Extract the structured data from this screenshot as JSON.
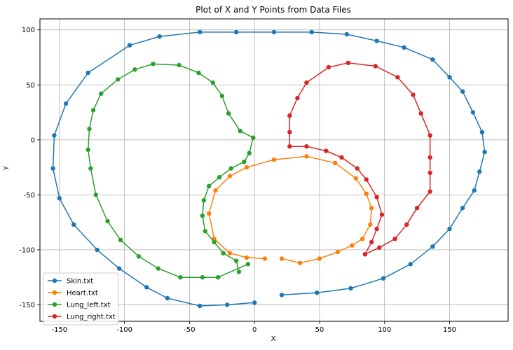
{
  "chart_data": {
    "type": "line",
    "title": "Plot of X and Y Points from Data Files",
    "xlabel": "X",
    "ylabel": "Y",
    "xlim": [
      -165,
      195
    ],
    "ylim": [
      -165,
      110
    ],
    "xticks": [
      -150,
      -100,
      -50,
      0,
      50,
      100,
      150
    ],
    "yticks": [
      -150,
      -100,
      -50,
      0,
      50,
      100
    ],
    "grid": true,
    "legend_position": "lower-left",
    "series": [
      {
        "name": "Skin.txt",
        "color": "#1f77b4",
        "points": [
          [
            0,
            -148
          ],
          [
            -21,
            -150
          ],
          [
            -42,
            -151
          ],
          [
            -67,
            -144
          ],
          [
            -83,
            -134
          ],
          [
            -104,
            -117
          ],
          [
            -121,
            -100
          ],
          [
            -139,
            -77
          ],
          [
            -150,
            -53
          ],
          [
            -155,
            -26
          ],
          [
            -154,
            4
          ],
          [
            -145,
            33
          ],
          [
            -128,
            61
          ],
          [
            -96,
            86
          ],
          [
            -73,
            94
          ],
          [
            -42,
            98
          ],
          [
            -14,
            98
          ],
          [
            15,
            98
          ],
          [
            44,
            98
          ],
          [
            71,
            96
          ],
          [
            94,
            90
          ],
          [
            115,
            84
          ],
          [
            137,
            73
          ],
          [
            150,
            57
          ],
          [
            160,
            44
          ],
          [
            168,
            25
          ],
          [
            175,
            7
          ],
          [
            177,
            -11
          ],
          [
            173,
            -29
          ],
          [
            169,
            -46
          ],
          [
            160,
            -62
          ],
          [
            150,
            -81
          ],
          [
            137,
            -97
          ],
          [
            120,
            -113
          ],
          [
            99,
            -126
          ],
          [
            74,
            -135
          ],
          [
            48,
            -139
          ],
          [
            21,
            -141
          ]
        ]
      },
      {
        "name": "Heart.txt",
        "color": "#ff7f0e",
        "points": [
          [
            8,
            -108
          ],
          [
            -6,
            -107
          ],
          [
            -19,
            -103
          ],
          [
            -31,
            -90
          ],
          [
            -35,
            -67
          ],
          [
            -30,
            -46
          ],
          [
            -19,
            -33
          ],
          [
            -6,
            -25
          ],
          [
            15,
            -18
          ],
          [
            40,
            -15
          ],
          [
            62,
            -21
          ],
          [
            78,
            -35
          ],
          [
            86,
            -49
          ],
          [
            90,
            -62
          ],
          [
            89,
            -77
          ],
          [
            83,
            -90
          ],
          [
            75,
            -96
          ],
          [
            64,
            -102
          ],
          [
            50,
            -108
          ],
          [
            35,
            -112
          ],
          [
            21,
            -108
          ]
        ]
      },
      {
        "name": "Lung_left.txt",
        "color": "#2ca02c",
        "points": [
          [
            -12,
            -120
          ],
          [
            -14,
            -110
          ],
          [
            -24,
            -103
          ],
          [
            -31,
            -93
          ],
          [
            -38,
            -83
          ],
          [
            -40,
            -69
          ],
          [
            -39,
            -55
          ],
          [
            -35,
            -42
          ],
          [
            -27,
            -34
          ],
          [
            -18,
            -26
          ],
          [
            -8,
            -20
          ],
          [
            -4,
            -12
          ],
          [
            -1,
            2
          ],
          [
            -11,
            8
          ],
          [
            -20,
            24
          ],
          [
            -25,
            40
          ],
          [
            -32,
            52
          ],
          [
            -43,
            61
          ],
          [
            -58,
            68
          ],
          [
            -78,
            69
          ],
          [
            -92,
            64
          ],
          [
            -105,
            55
          ],
          [
            -118,
            42
          ],
          [
            -124,
            27
          ],
          [
            -127,
            10
          ],
          [
            -128,
            -9
          ],
          [
            -126,
            -26
          ],
          [
            -122,
            -50
          ],
          [
            -113,
            -74
          ],
          [
            -103,
            -91
          ],
          [
            -89,
            -106
          ],
          [
            -74,
            -117
          ],
          [
            -57,
            -125
          ],
          [
            -40,
            -125
          ],
          [
            -28,
            -125
          ],
          [
            -5,
            -113
          ]
        ]
      },
      {
        "name": "Lung_right.txt",
        "color": "#d62728",
        "points": [
          [
            85,
            -104
          ],
          [
            90,
            -93
          ],
          [
            94,
            -81
          ],
          [
            98,
            -68
          ],
          [
            94,
            -52
          ],
          [
            86,
            -36
          ],
          [
            79,
            -26
          ],
          [
            67,
            -16
          ],
          [
            55,
            -10
          ],
          [
            40,
            -6
          ],
          [
            27,
            -6
          ],
          [
            27,
            7
          ],
          [
            27,
            22
          ],
          [
            33,
            38
          ],
          [
            40,
            52
          ],
          [
            57,
            66
          ],
          [
            72,
            70
          ],
          [
            93,
            67
          ],
          [
            110,
            57
          ],
          [
            122,
            41
          ],
          [
            128,
            24
          ],
          [
            135,
            4
          ],
          [
            135,
            -16
          ],
          [
            135,
            -30
          ],
          [
            135,
            -47
          ],
          [
            125,
            -62
          ],
          [
            117,
            -77
          ],
          [
            108,
            -90
          ],
          [
            96,
            -98
          ],
          [
            85,
            -104
          ]
        ]
      }
    ]
  }
}
